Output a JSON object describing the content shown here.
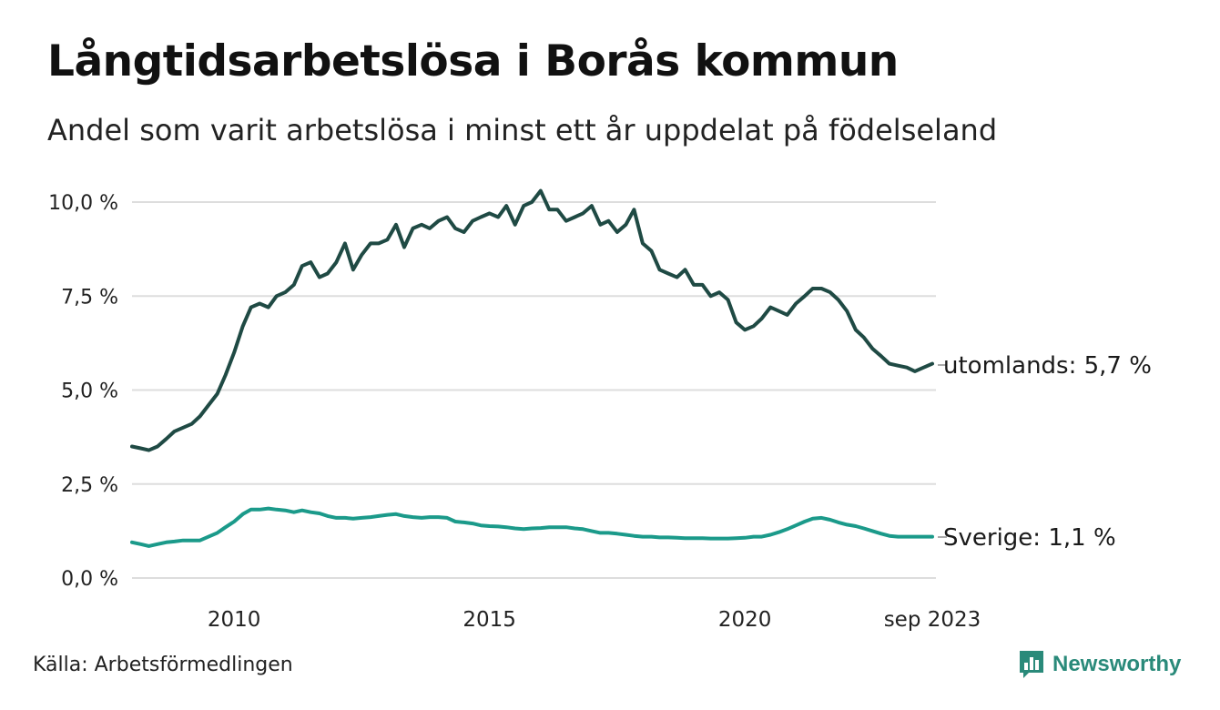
{
  "header": {
    "title": "Långtidsarbetslösa i Borås kommun",
    "subtitle": "Andel som varit arbetslösa i minst ett år uppdelat på födelseland"
  },
  "footer": {
    "source": "Källa: Arbetsförmedlingen",
    "brand": "Newsworthy"
  },
  "colors": {
    "utomlands": "#1f4a44",
    "sverige": "#1b9a8a",
    "grid": "#dddddd"
  },
  "chart_data": {
    "type": "line",
    "title": "Långtidsarbetslösa i Borås kommun",
    "xlabel": "",
    "ylabel": "",
    "ylim": [
      0,
      10.5
    ],
    "y_ticks": [
      0,
      2.5,
      5,
      7.5,
      10
    ],
    "y_tick_labels": [
      "0,0 %",
      "2,5 %",
      "5,0 %",
      "7,5 %",
      "10,0 %"
    ],
    "x_ticks": [
      2010,
      2015,
      2020,
      2023.67
    ],
    "x_tick_labels": [
      "2010",
      "2015",
      "2020",
      "sep 2023"
    ],
    "x_range": [
      2008.0,
      2023.67
    ],
    "grid": true,
    "series": [
      {
        "name": "utomlands",
        "end_label": "utomlands: 5,7 %",
        "points": [
          [
            2008.0,
            3.5
          ],
          [
            2008.17,
            3.45
          ],
          [
            2008.33,
            3.4
          ],
          [
            2008.5,
            3.5
          ],
          [
            2008.67,
            3.7
          ],
          [
            2008.83,
            3.9
          ],
          [
            2009.0,
            4.0
          ],
          [
            2009.17,
            4.1
          ],
          [
            2009.33,
            4.3
          ],
          [
            2009.5,
            4.6
          ],
          [
            2009.67,
            4.9
          ],
          [
            2009.83,
            5.4
          ],
          [
            2010.0,
            6.0
          ],
          [
            2010.17,
            6.7
          ],
          [
            2010.33,
            7.2
          ],
          [
            2010.5,
            7.3
          ],
          [
            2010.67,
            7.2
          ],
          [
            2010.83,
            7.5
          ],
          [
            2011.0,
            7.6
          ],
          [
            2011.17,
            7.8
          ],
          [
            2011.33,
            8.3
          ],
          [
            2011.5,
            8.4
          ],
          [
            2011.67,
            8.0
          ],
          [
            2011.83,
            8.1
          ],
          [
            2012.0,
            8.4
          ],
          [
            2012.17,
            8.9
          ],
          [
            2012.33,
            8.2
          ],
          [
            2012.5,
            8.6
          ],
          [
            2012.67,
            8.9
          ],
          [
            2012.83,
            8.9
          ],
          [
            2013.0,
            9.0
          ],
          [
            2013.17,
            9.4
          ],
          [
            2013.33,
            8.8
          ],
          [
            2013.5,
            9.3
          ],
          [
            2013.67,
            9.4
          ],
          [
            2013.83,
            9.3
          ],
          [
            2014.0,
            9.5
          ],
          [
            2014.17,
            9.6
          ],
          [
            2014.33,
            9.3
          ],
          [
            2014.5,
            9.2
          ],
          [
            2014.67,
            9.5
          ],
          [
            2014.83,
            9.6
          ],
          [
            2015.0,
            9.7
          ],
          [
            2015.17,
            9.6
          ],
          [
            2015.33,
            9.9
          ],
          [
            2015.5,
            9.4
          ],
          [
            2015.67,
            9.9
          ],
          [
            2015.83,
            10.0
          ],
          [
            2016.0,
            10.3
          ],
          [
            2016.17,
            9.8
          ],
          [
            2016.33,
            9.8
          ],
          [
            2016.5,
            9.5
          ],
          [
            2016.67,
            9.6
          ],
          [
            2016.83,
            9.7
          ],
          [
            2017.0,
            9.9
          ],
          [
            2017.17,
            9.4
          ],
          [
            2017.33,
            9.5
          ],
          [
            2017.5,
            9.2
          ],
          [
            2017.67,
            9.4
          ],
          [
            2017.83,
            9.8
          ],
          [
            2018.0,
            8.9
          ],
          [
            2018.17,
            8.7
          ],
          [
            2018.33,
            8.2
          ],
          [
            2018.5,
            8.1
          ],
          [
            2018.67,
            8.0
          ],
          [
            2018.83,
            8.2
          ],
          [
            2019.0,
            7.8
          ],
          [
            2019.17,
            7.8
          ],
          [
            2019.33,
            7.5
          ],
          [
            2019.5,
            7.6
          ],
          [
            2019.67,
            7.4
          ],
          [
            2019.83,
            6.8
          ],
          [
            2020.0,
            6.6
          ],
          [
            2020.17,
            6.7
          ],
          [
            2020.33,
            6.9
          ],
          [
            2020.5,
            7.2
          ],
          [
            2020.67,
            7.1
          ],
          [
            2020.83,
            7.0
          ],
          [
            2021.0,
            7.3
          ],
          [
            2021.17,
            7.5
          ],
          [
            2021.33,
            7.7
          ],
          [
            2021.5,
            7.7
          ],
          [
            2021.67,
            7.6
          ],
          [
            2021.83,
            7.4
          ],
          [
            2022.0,
            7.1
          ],
          [
            2022.17,
            6.6
          ],
          [
            2022.33,
            6.4
          ],
          [
            2022.5,
            6.1
          ],
          [
            2022.67,
            5.9
          ],
          [
            2022.83,
            5.7
          ],
          [
            2023.0,
            5.65
          ],
          [
            2023.17,
            5.6
          ],
          [
            2023.33,
            5.5
          ],
          [
            2023.5,
            5.6
          ],
          [
            2023.67,
            5.7
          ]
        ]
      },
      {
        "name": "Sverige",
        "end_label": "Sverige: 1,1 %",
        "points": [
          [
            2008.0,
            0.95
          ],
          [
            2008.17,
            0.9
          ],
          [
            2008.33,
            0.85
          ],
          [
            2008.5,
            0.9
          ],
          [
            2008.67,
            0.95
          ],
          [
            2008.83,
            0.97
          ],
          [
            2009.0,
            1.0
          ],
          [
            2009.17,
            1.0
          ],
          [
            2009.33,
            1.0
          ],
          [
            2009.5,
            1.1
          ],
          [
            2009.67,
            1.2
          ],
          [
            2009.83,
            1.35
          ],
          [
            2010.0,
            1.5
          ],
          [
            2010.17,
            1.7
          ],
          [
            2010.33,
            1.82
          ],
          [
            2010.5,
            1.82
          ],
          [
            2010.67,
            1.85
          ],
          [
            2010.83,
            1.82
          ],
          [
            2011.0,
            1.8
          ],
          [
            2011.17,
            1.75
          ],
          [
            2011.33,
            1.8
          ],
          [
            2011.5,
            1.75
          ],
          [
            2011.67,
            1.72
          ],
          [
            2011.83,
            1.65
          ],
          [
            2012.0,
            1.6
          ],
          [
            2012.17,
            1.6
          ],
          [
            2012.33,
            1.58
          ],
          [
            2012.5,
            1.6
          ],
          [
            2012.67,
            1.62
          ],
          [
            2012.83,
            1.65
          ],
          [
            2013.0,
            1.68
          ],
          [
            2013.17,
            1.7
          ],
          [
            2013.33,
            1.65
          ],
          [
            2013.5,
            1.62
          ],
          [
            2013.67,
            1.6
          ],
          [
            2013.83,
            1.62
          ],
          [
            2014.0,
            1.62
          ],
          [
            2014.17,
            1.6
          ],
          [
            2014.33,
            1.5
          ],
          [
            2014.5,
            1.48
          ],
          [
            2014.67,
            1.45
          ],
          [
            2014.83,
            1.4
          ],
          [
            2015.0,
            1.38
          ],
          [
            2015.17,
            1.37
          ],
          [
            2015.33,
            1.35
          ],
          [
            2015.5,
            1.32
          ],
          [
            2015.67,
            1.3
          ],
          [
            2015.83,
            1.32
          ],
          [
            2016.0,
            1.33
          ],
          [
            2016.17,
            1.35
          ],
          [
            2016.33,
            1.35
          ],
          [
            2016.5,
            1.35
          ],
          [
            2016.67,
            1.32
          ],
          [
            2016.83,
            1.3
          ],
          [
            2017.0,
            1.25
          ],
          [
            2017.17,
            1.2
          ],
          [
            2017.33,
            1.2
          ],
          [
            2017.5,
            1.18
          ],
          [
            2017.67,
            1.15
          ],
          [
            2017.83,
            1.12
          ],
          [
            2018.0,
            1.1
          ],
          [
            2018.17,
            1.1
          ],
          [
            2018.33,
            1.08
          ],
          [
            2018.5,
            1.08
          ],
          [
            2018.67,
            1.07
          ],
          [
            2018.83,
            1.06
          ],
          [
            2019.0,
            1.06
          ],
          [
            2019.17,
            1.06
          ],
          [
            2019.33,
            1.05
          ],
          [
            2019.5,
            1.05
          ],
          [
            2019.67,
            1.05
          ],
          [
            2019.83,
            1.06
          ],
          [
            2020.0,
            1.07
          ],
          [
            2020.17,
            1.1
          ],
          [
            2020.33,
            1.1
          ],
          [
            2020.5,
            1.15
          ],
          [
            2020.67,
            1.22
          ],
          [
            2020.83,
            1.3
          ],
          [
            2021.0,
            1.4
          ],
          [
            2021.17,
            1.5
          ],
          [
            2021.33,
            1.58
          ],
          [
            2021.5,
            1.6
          ],
          [
            2021.67,
            1.55
          ],
          [
            2021.83,
            1.48
          ],
          [
            2022.0,
            1.42
          ],
          [
            2022.17,
            1.38
          ],
          [
            2022.33,
            1.32
          ],
          [
            2022.5,
            1.25
          ],
          [
            2022.67,
            1.18
          ],
          [
            2022.83,
            1.12
          ],
          [
            2023.0,
            1.1
          ],
          [
            2023.17,
            1.1
          ],
          [
            2023.33,
            1.1
          ],
          [
            2023.5,
            1.1
          ],
          [
            2023.67,
            1.1
          ]
        ]
      }
    ]
  }
}
